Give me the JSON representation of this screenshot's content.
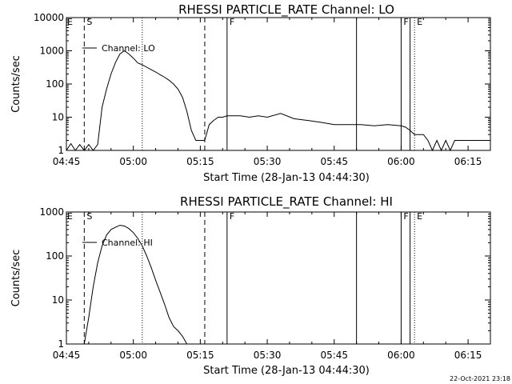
{
  "chart_data": [
    {
      "type": "line",
      "title": "RHESSI PARTICLE_RATE Channel: LO",
      "xlabel": "Start Time (28-Jan-13 04:44:30)",
      "ylabel": "Counts/sec",
      "y_scale": "log",
      "ylim": [
        1,
        10000
      ],
      "xlim": [
        "04:45",
        "06:20"
      ],
      "x_ticks": [
        "04:45",
        "05:00",
        "05:15",
        "05:30",
        "05:45",
        "06:00",
        "06:15"
      ],
      "y_ticks": [
        "1",
        "10",
        "100",
        "1000",
        "10000"
      ],
      "legend": {
        "label": "Channel: LO",
        "position": "top-left"
      },
      "grid": false,
      "series": [
        {
          "x": [
            "04:45",
            "04:46",
            "04:47",
            "04:48",
            "04:49",
            "04:50",
            "04:51",
            "04:52",
            "04:53",
            "04:54",
            "04:55",
            "04:56",
            "04:57",
            "04:58",
            "04:59",
            "05:00",
            "05:01",
            "05:02",
            "05:03",
            "05:04",
            "05:05",
            "05:06",
            "05:07",
            "05:08",
            "05:09",
            "05:10",
            "05:11",
            "05:12",
            "05:13",
            "05:14",
            "05:15",
            "05:16",
            "05:17",
            "05:18",
            "05:19",
            "05:20",
            "05:21",
            "05:22",
            "05:24",
            "05:26",
            "05:28",
            "05:30",
            "05:33",
            "05:36",
            "05:39",
            "05:42",
            "05:45",
            "05:48",
            "05:51",
            "05:54",
            "05:57",
            "06:00",
            "06:01",
            "06:02",
            "06:03",
            "06:04",
            "06:05",
            "06:06",
            "06:07",
            "06:08",
            "06:09",
            "06:10",
            "06:11",
            "06:12",
            "06:13",
            "06:14",
            "06:15",
            "06:16",
            "06:17",
            "06:18",
            "06:19",
            "06:20"
          ],
          "y": [
            1,
            1.6,
            1,
            1.5,
            1,
            1.5,
            1,
            1.5,
            20,
            70,
            200,
            450,
            800,
            1000,
            800,
            600,
            430,
            380,
            320,
            270,
            230,
            190,
            160,
            130,
            100,
            70,
            40,
            15,
            4,
            2,
            2,
            2,
            6,
            8,
            10,
            10,
            11,
            11,
            11,
            10,
            11,
            10,
            13,
            9,
            8,
            7,
            6,
            6,
            6,
            5.5,
            6,
            5.5,
            5,
            4,
            3,
            3,
            3,
            2,
            1,
            2,
            1,
            2,
            1,
            2,
            2,
            2,
            2,
            2,
            2,
            2,
            2,
            2
          ]
        }
      ],
      "events": [
        {
          "time": "04:49",
          "style": "dashed",
          "label": "S"
        },
        {
          "time": "05:02",
          "style": "dotted",
          "label": ""
        },
        {
          "time": "05:16",
          "style": "dashed",
          "label": ""
        },
        {
          "time": "05:21",
          "style": "solid",
          "label": "F"
        },
        {
          "time": "05:50",
          "style": "solid",
          "label": ""
        },
        {
          "time": "06:00",
          "style": "solid",
          "label": "F"
        },
        {
          "time": "06:02",
          "style": "solid",
          "label": ""
        },
        {
          "time": "06:03",
          "style": "dotted",
          "label": "E"
        },
        {
          "time": "06:20",
          "style": "dotted",
          "label": ""
        }
      ],
      "corner_flag": "E"
    },
    {
      "type": "line",
      "title": "RHESSI PARTICLE_RATE Channel: HI",
      "xlabel": "Start Time (28-Jan-13 04:44:30)",
      "ylabel": "Counts/sec",
      "y_scale": "log",
      "ylim": [
        1,
        1000
      ],
      "xlim": [
        "04:45",
        "06:20"
      ],
      "x_ticks": [
        "04:45",
        "05:00",
        "05:15",
        "05:30",
        "05:45",
        "06:00",
        "06:15"
      ],
      "y_ticks": [
        "1",
        "10",
        "100",
        "1000"
      ],
      "legend": {
        "label": "Channel: HI",
        "position": "top-left"
      },
      "grid": false,
      "series": [
        {
          "x": [
            "04:49",
            "04:50",
            "04:51",
            "04:52",
            "04:53",
            "04:54",
            "04:55",
            "04:56",
            "04:57",
            "04:58",
            "04:59",
            "05:00",
            "05:01",
            "05:02",
            "05:03",
            "05:04",
            "05:05",
            "05:06",
            "05:07",
            "05:08",
            "05:09",
            "05:10",
            "05:11",
            "05:12"
          ],
          "y": [
            1,
            4,
            20,
            70,
            170,
            300,
            400,
            450,
            500,
            480,
            420,
            340,
            250,
            170,
            100,
            55,
            28,
            15,
            8,
            4,
            2.5,
            2,
            1.5,
            1
          ]
        }
      ],
      "events": [
        {
          "time": "04:49",
          "style": "dashed",
          "label": "S"
        },
        {
          "time": "05:02",
          "style": "dotted",
          "label": ""
        },
        {
          "time": "05:16",
          "style": "dashed",
          "label": ""
        },
        {
          "time": "05:21",
          "style": "solid",
          "label": "F"
        },
        {
          "time": "05:50",
          "style": "solid",
          "label": ""
        },
        {
          "time": "06:00",
          "style": "solid",
          "label": "F"
        },
        {
          "time": "06:02",
          "style": "solid",
          "label": ""
        },
        {
          "time": "06:03",
          "style": "dotted",
          "label": "E"
        },
        {
          "time": "06:20",
          "style": "dotted",
          "label": ""
        }
      ],
      "corner_flag": "E"
    }
  ],
  "timestamp": "22-Oct-2021 23:18"
}
